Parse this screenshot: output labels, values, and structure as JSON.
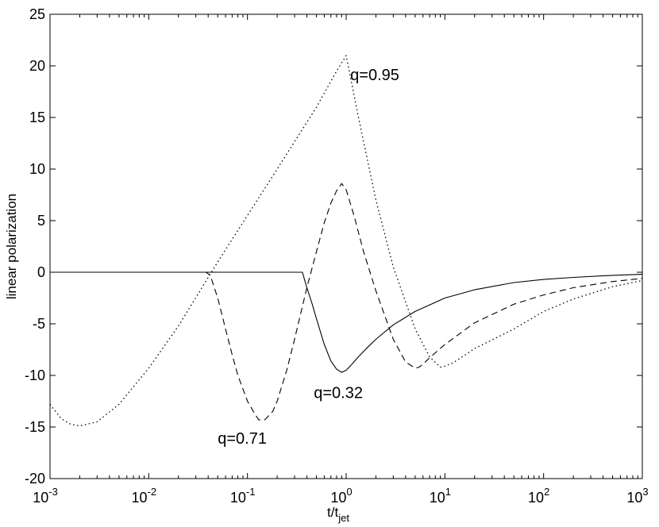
{
  "chart_data": {
    "type": "line",
    "title": "",
    "xlabel": "t/t",
    "xlabel_sub": "jet",
    "ylabel": "linear polarization",
    "xscale": "log",
    "xlim": [
      0.001,
      1000
    ],
    "ylim": [
      -20,
      25
    ],
    "grid": false,
    "legend": "none",
    "xticks": [
      {
        "value": 0.001,
        "base": "10",
        "exp": "-3"
      },
      {
        "value": 0.01,
        "base": "10",
        "exp": "-2"
      },
      {
        "value": 0.1,
        "base": "10",
        "exp": "-1"
      },
      {
        "value": 1,
        "base": "10",
        "exp": "0"
      },
      {
        "value": 10,
        "base": "10",
        "exp": "1"
      },
      {
        "value": 100,
        "base": "10",
        "exp": "2"
      },
      {
        "value": 1000,
        "base": "10",
        "exp": "3"
      }
    ],
    "yticks": [
      -20,
      -15,
      -10,
      -5,
      0,
      5,
      10,
      15,
      20,
      25
    ],
    "series": [
      {
        "style": "solid",
        "x": [
          0.001,
          0.01,
          0.1,
          0.3,
          0.36,
          0.4,
          0.45,
          0.5,
          0.6,
          0.7,
          0.8,
          0.9,
          1.0,
          1.1,
          1.3,
          1.6,
          2,
          3,
          5,
          10,
          20,
          50,
          100,
          200,
          500,
          1000
        ],
        "y": [
          0,
          0,
          0,
          0,
          0,
          -1.5,
          -3.0,
          -4.5,
          -7.0,
          -8.6,
          -9.4,
          -9.7,
          -9.5,
          -9.1,
          -8.3,
          -7.4,
          -6.5,
          -5.1,
          -3.8,
          -2.5,
          -1.7,
          -1.0,
          -0.7,
          -0.5,
          -0.3,
          -0.2
        ]
      },
      {
        "style": "dashed",
        "x": [
          0.001,
          0.01,
          0.03,
          0.038,
          0.042,
          0.05,
          0.06,
          0.07,
          0.08,
          0.1,
          0.12,
          0.13,
          0.15,
          0.18,
          0.2,
          0.25,
          0.3,
          0.4,
          0.5,
          0.6,
          0.7,
          0.8,
          0.9,
          1.0,
          1.2,
          1.5,
          2,
          3,
          4,
          5,
          5.5,
          6,
          7,
          10,
          20,
          50,
          100,
          200,
          500,
          1000
        ],
        "y": [
          0,
          0,
          0,
          0,
          -0.3,
          -2.5,
          -5.5,
          -8.0,
          -10.0,
          -12.5,
          -13.8,
          -14.3,
          -14.3,
          -13.5,
          -12.5,
          -9.5,
          -6.5,
          -1.5,
          2.0,
          4.8,
          6.7,
          7.9,
          8.6,
          8.0,
          5.5,
          2.0,
          -1.8,
          -6.5,
          -8.7,
          -9.3,
          -9.2,
          -8.9,
          -8.3,
          -7.0,
          -4.9,
          -3.1,
          -2.2,
          -1.5,
          -0.9,
          -0.6
        ]
      },
      {
        "style": "dotted",
        "x": [
          0.001,
          0.0013,
          0.0016,
          0.002,
          0.003,
          0.005,
          0.01,
          0.02,
          0.05,
          0.1,
          0.2,
          0.5,
          0.8,
          1.0,
          1.3,
          2,
          3,
          5,
          7,
          9,
          10,
          12,
          15,
          20,
          50,
          100,
          200,
          500,
          1000
        ],
        "y": [
          -12.8,
          -14.2,
          -14.7,
          -14.9,
          -14.5,
          -12.8,
          -9.3,
          -5.2,
          1.0,
          5.5,
          10.0,
          16.0,
          19.5,
          21.0,
          15.5,
          7.0,
          0.5,
          -5.5,
          -8.2,
          -9.2,
          -9.1,
          -8.8,
          -8.2,
          -7.4,
          -5.5,
          -3.8,
          -2.6,
          -1.4,
          -0.8
        ]
      }
    ],
    "annotations": [
      {
        "text": "q=0.95",
        "x": 1.1,
        "y": 18.6
      },
      {
        "text": "q=0.32",
        "x": 0.47,
        "y": -12.2
      },
      {
        "text": "q=0.71",
        "x": 0.05,
        "y": -16.6
      }
    ]
  }
}
